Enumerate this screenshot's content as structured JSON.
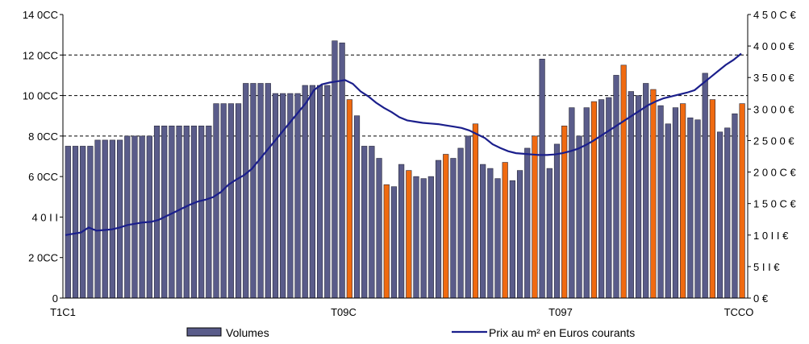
{
  "chart_data": {
    "type": "bar",
    "x_tick_labels": [
      "T1C1",
      "T09C",
      "T097",
      "TCCO"
    ],
    "y_left": {
      "range": [
        0,
        14000
      ],
      "tick_labels": [
        "0",
        "2 0CC",
        "4 0 I I",
        "6 0CC",
        "8 0CC",
        "10 0CC",
        "12 0CC",
        "14 0CC"
      ]
    },
    "y_right": {
      "range": [
        0,
        4500
      ],
      "tick_labels": [
        "0 €",
        "5 I I €",
        "1 0 I I €",
        "1 5 0 C €",
        "2 0 0 C €",
        "2 5 0 0 €",
        "3 0 0 0 €",
        "3 5 0 0 €",
        "4 0 0 0 €",
        "4 5 0 C €"
      ]
    },
    "grid": "dashed at 8000, 10000, 12000",
    "legend_position": "bottom",
    "legend": {
      "bars_label": "Volumes",
      "line_label": "Prix au m² en Euros courants"
    },
    "colors": {
      "bar": "#5a5c8a",
      "highlight": "#f06a10",
      "line": "#1b1f8c",
      "grid": "#000000"
    },
    "bars": {
      "values": [
        7500,
        7500,
        7500,
        7500,
        7800,
        7800,
        7800,
        7800,
        8000,
        8000,
        8000,
        8000,
        8500,
        8500,
        8500,
        8500,
        8500,
        8500,
        8500,
        8500,
        9600,
        9600,
        9600,
        9600,
        10600,
        10600,
        10600,
        10600,
        10100,
        10100,
        10100,
        10100,
        10500,
        10500,
        10500,
        10500,
        12700,
        12600,
        9800,
        9000,
        7500,
        7500,
        6900,
        5600,
        5500,
        6600,
        6300,
        6000,
        5900,
        6000,
        6800,
        7100,
        6900,
        7400,
        8000,
        8600,
        6600,
        6400,
        5900,
        6700,
        5800,
        6300,
        7400,
        8000,
        11800,
        6400,
        7600,
        8500,
        9400,
        8000,
        9400,
        9700,
        9800,
        9900,
        11000,
        11500,
        10200,
        10000,
        10600,
        10300,
        9500,
        8600,
        9400,
        9600,
        8900,
        8800,
        11100,
        9800,
        8200,
        8400,
        9100,
        9600
      ],
      "highlight_indices": [
        38,
        43,
        46,
        51,
        55,
        59,
        63,
        67,
        71,
        75,
        79,
        83,
        87,
        91
      ]
    },
    "line": {
      "values": [
        1000,
        1020,
        1040,
        1120,
        1070,
        1080,
        1090,
        1120,
        1160,
        1180,
        1200,
        1210,
        1240,
        1300,
        1360,
        1420,
        1480,
        1530,
        1560,
        1600,
        1680,
        1800,
        1880,
        1950,
        2050,
        2200,
        2350,
        2500,
        2650,
        2800,
        2950,
        3100,
        3300,
        3390,
        3420,
        3440,
        3460,
        3400,
        3280,
        3200,
        3100,
        3020,
        2950,
        2870,
        2820,
        2800,
        2780,
        2770,
        2760,
        2740,
        2720,
        2700,
        2660,
        2600,
        2540,
        2440,
        2380,
        2330,
        2300,
        2290,
        2280,
        2270,
        2270,
        2280,
        2300,
        2330,
        2370,
        2430,
        2500,
        2580,
        2660,
        2740,
        2820,
        2900,
        2980,
        3060,
        3120,
        3170,
        3200,
        3230,
        3260,
        3300,
        3400,
        3500,
        3600,
        3700,
        3780,
        3880
      ]
    }
  }
}
